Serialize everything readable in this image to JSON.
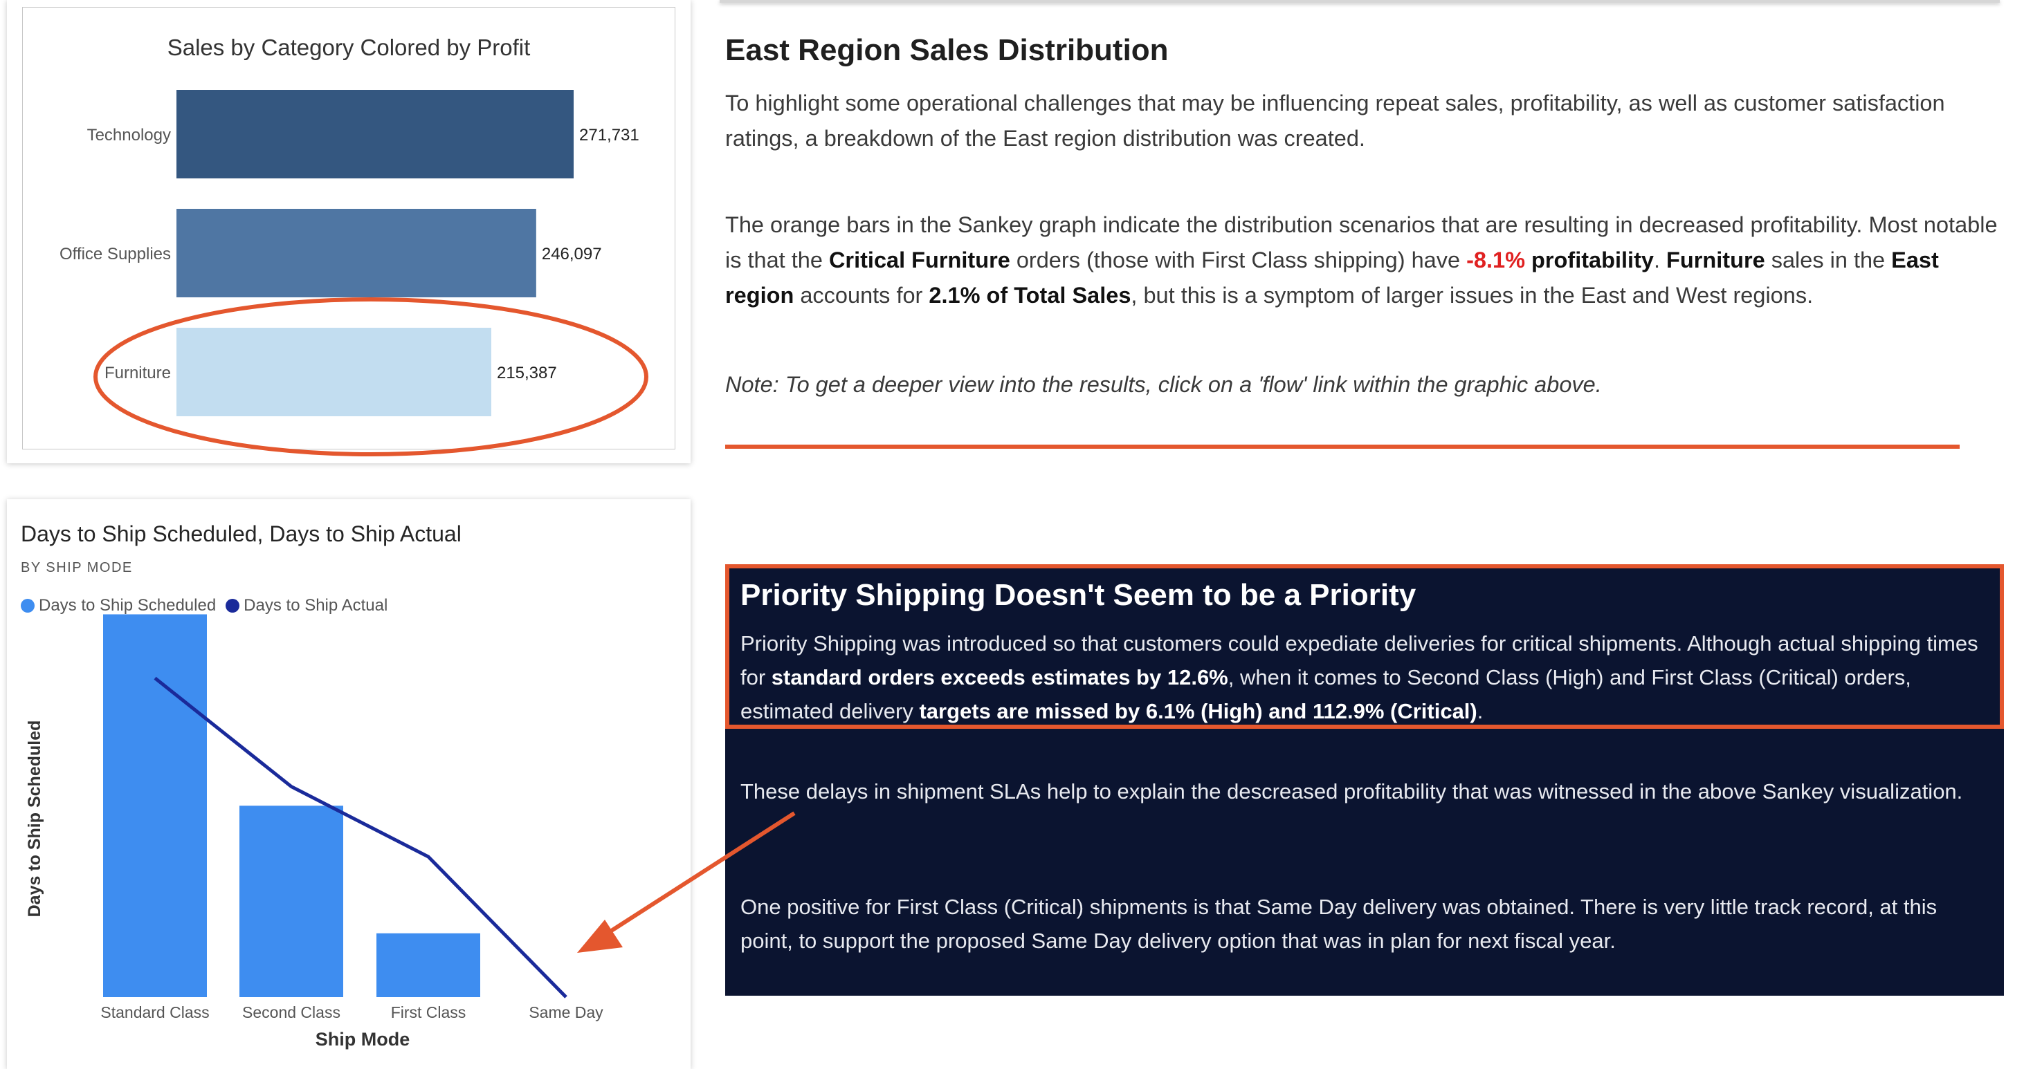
{
  "sales_chart": {
    "title": "Sales by Category Colored by Profit",
    "chart_data": {
      "type": "bar",
      "orientation": "horizontal",
      "title": "Sales by Category Colored by Profit",
      "categories": [
        "Technology",
        "Office Supplies",
        "Furniture"
      ],
      "values": [
        271731,
        246097,
        215387
      ],
      "value_labels": [
        "271,731",
        "246,097",
        "215,387"
      ],
      "colors": [
        "#345780",
        "#4f76a3",
        "#c2ddf0"
      ],
      "xlim": [
        0,
        290000
      ],
      "annotation": "red ellipse highlighting Furniture"
    }
  },
  "ship_chart": {
    "title": "Days to Ship Scheduled, Days to Ship Actual",
    "subtitle": "BY SHIP MODE",
    "legend": [
      {
        "label": "Days to Ship Scheduled",
        "color": "#3e8df0"
      },
      {
        "label": "Days to Ship Actual",
        "color": "#1a2a9a"
      }
    ],
    "chart_data": {
      "type": "bar",
      "title": "Days to Ship Scheduled, Days to Ship Actual",
      "xlabel": "Ship Mode",
      "ylabel": "Days to Ship Scheduled",
      "categories": [
        "Standard Class",
        "Second Class",
        "First Class",
        "Same Day"
      ],
      "series": [
        {
          "name": "Days to Ship Scheduled",
          "type": "bar",
          "values": [
            6,
            3,
            1,
            0
          ]
        },
        {
          "name": "Days to Ship Actual",
          "type": "line",
          "values": [
            5,
            3.3,
            2.2,
            0
          ]
        }
      ],
      "ylim": [
        0,
        6.2
      ],
      "grid": false
    }
  },
  "east": {
    "heading": "East Region Sales Distribution",
    "para1": "To highlight some operational challenges that may be influencing repeat sales, profitability, as well as customer satisfaction ratings, a breakdown of the East region distribution was created.",
    "para2": {
      "t1": "The orange bars in the Sankey graph indicate the distribution scenarios that are resulting in decreased profitability. Most notable is that the ",
      "b1": "Critical Furniture",
      "t2": " orders (those with First Class shipping) have ",
      "neg": "-8.1%",
      "b2": " profitability",
      "t3": ". ",
      "b3": "Furniture",
      "t4": " sales in the ",
      "b4": "East region",
      "t5": " accounts for ",
      "b5": "2.1% of Total Sales",
      "t6": ", but this is a symptom of larger issues in the East and West regions."
    },
    "note": "Note: To get a deeper view into the results, click on a 'flow' link within the graphic above."
  },
  "priority": {
    "heading": "Priority Shipping Doesn't Seem to be a Priority",
    "para1": {
      "t1": "Priority Shipping was introduced so that customers could expediate deliveries for critical shipments. Although actual shipping times for ",
      "b1": "standard orders exceeds estimates by 12.6%",
      "t2": ", when it comes to Second Class (High) and First Class (Critical) orders, estimated delivery ",
      "b2": "targets are missed by 6.1% (High) and 112.9% (Critical)",
      "t3": "."
    },
    "para2": "These delays in shipment SLAs help to explain the descreased profitability that was witnessed in the above Sankey visualization.",
    "para3": "One positive for First Class (Critical) shipments is that Same Day delivery was obtained. There is very little track record, at this point, to support the proposed Same Day delivery option that was in plan for next fiscal year."
  },
  "colors": {
    "accent": "#e4572e",
    "dark_bg": "#0b1430",
    "negative": "#e02020"
  }
}
